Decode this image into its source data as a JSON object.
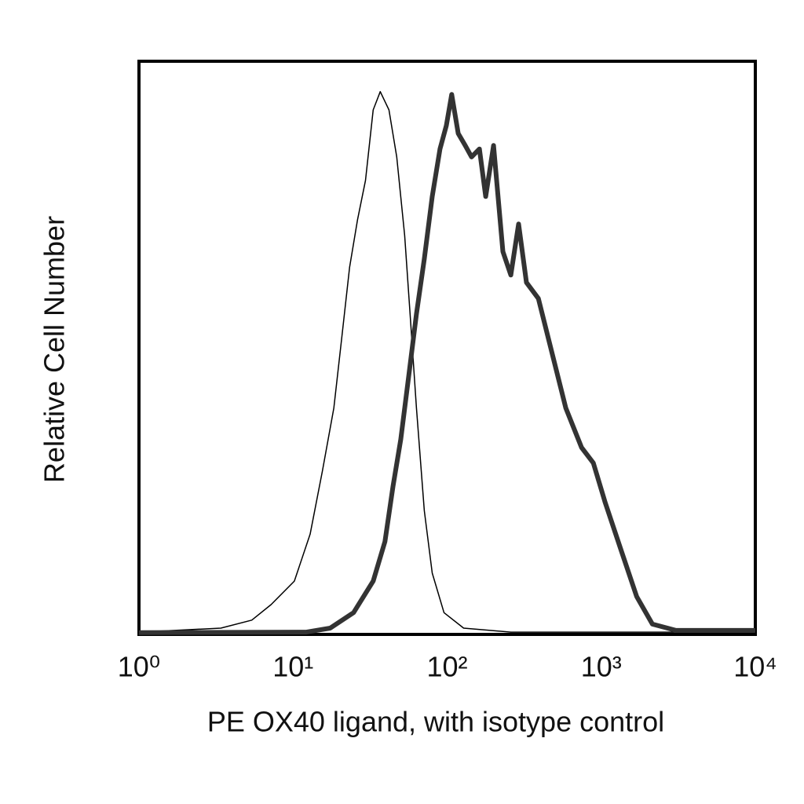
{
  "chart_data": {
    "type": "line",
    "x_label": "PE OX40 ligand, with isotype control",
    "y_label": "Relative Cell Number",
    "xscale": "log",
    "xlim": [
      1,
      10000
    ],
    "xticks": [
      {
        "value": 1,
        "label": "10⁰"
      },
      {
        "value": 10,
        "label": "10¹"
      },
      {
        "value": 100,
        "label": "10²"
      },
      {
        "value": 1000,
        "label": "10³"
      },
      {
        "value": 10000,
        "label": "10⁴"
      }
    ],
    "ylim": [
      0,
      100
    ],
    "grid": false,
    "series": [
      {
        "color": "#000000",
        "width": 1.5,
        "x": [
          1,
          3.4,
          5.4,
          7.2,
          10.2,
          12.9,
          15.5,
          18.4,
          20.7,
          23.3,
          26.2,
          29.5,
          33.1,
          36.8,
          41.9,
          47.1,
          53,
          57.5,
          63.2,
          71.1,
          80,
          95.4,
          128,
          259,
          10000
        ],
        "values": [
          0.4,
          1.1,
          2.5,
          5.2,
          9.3,
          17.5,
          28.5,
          39.5,
          51.8,
          64.1,
          72.3,
          79.2,
          91.5,
          94.7,
          91.5,
          83.3,
          69.6,
          55.9,
          39.5,
          21.6,
          10.7,
          3.8,
          1.1,
          0.4,
          0.4
        ]
      },
      {
        "color": "#333333",
        "width": 6,
        "x": [
          1,
          12.2,
          17.4,
          24.7,
          33.1,
          39.5,
          44.5,
          50,
          56.2,
          63.2,
          71.1,
          80,
          89.9,
          98.8,
          107,
          118,
          131,
          144,
          162,
          178,
          200,
          230,
          259,
          291,
          327,
          391,
          466,
          589,
          745,
          889,
          1061,
          1342,
          1698,
          2148,
          3055,
          10000
        ],
        "values": [
          0.3,
          0.4,
          1.1,
          3.8,
          9.3,
          16.2,
          25.8,
          34,
          44.9,
          55.9,
          65.5,
          76.4,
          84.7,
          88.8,
          94.2,
          87.4,
          85.3,
          83.3,
          84.7,
          76.4,
          85.3,
          66.8,
          62.7,
          71.6,
          61.4,
          58.6,
          50.4,
          39.5,
          32.6,
          29.9,
          23,
          14.8,
          6.6,
          1.8,
          0.7,
          0.7
        ]
      }
    ]
  }
}
